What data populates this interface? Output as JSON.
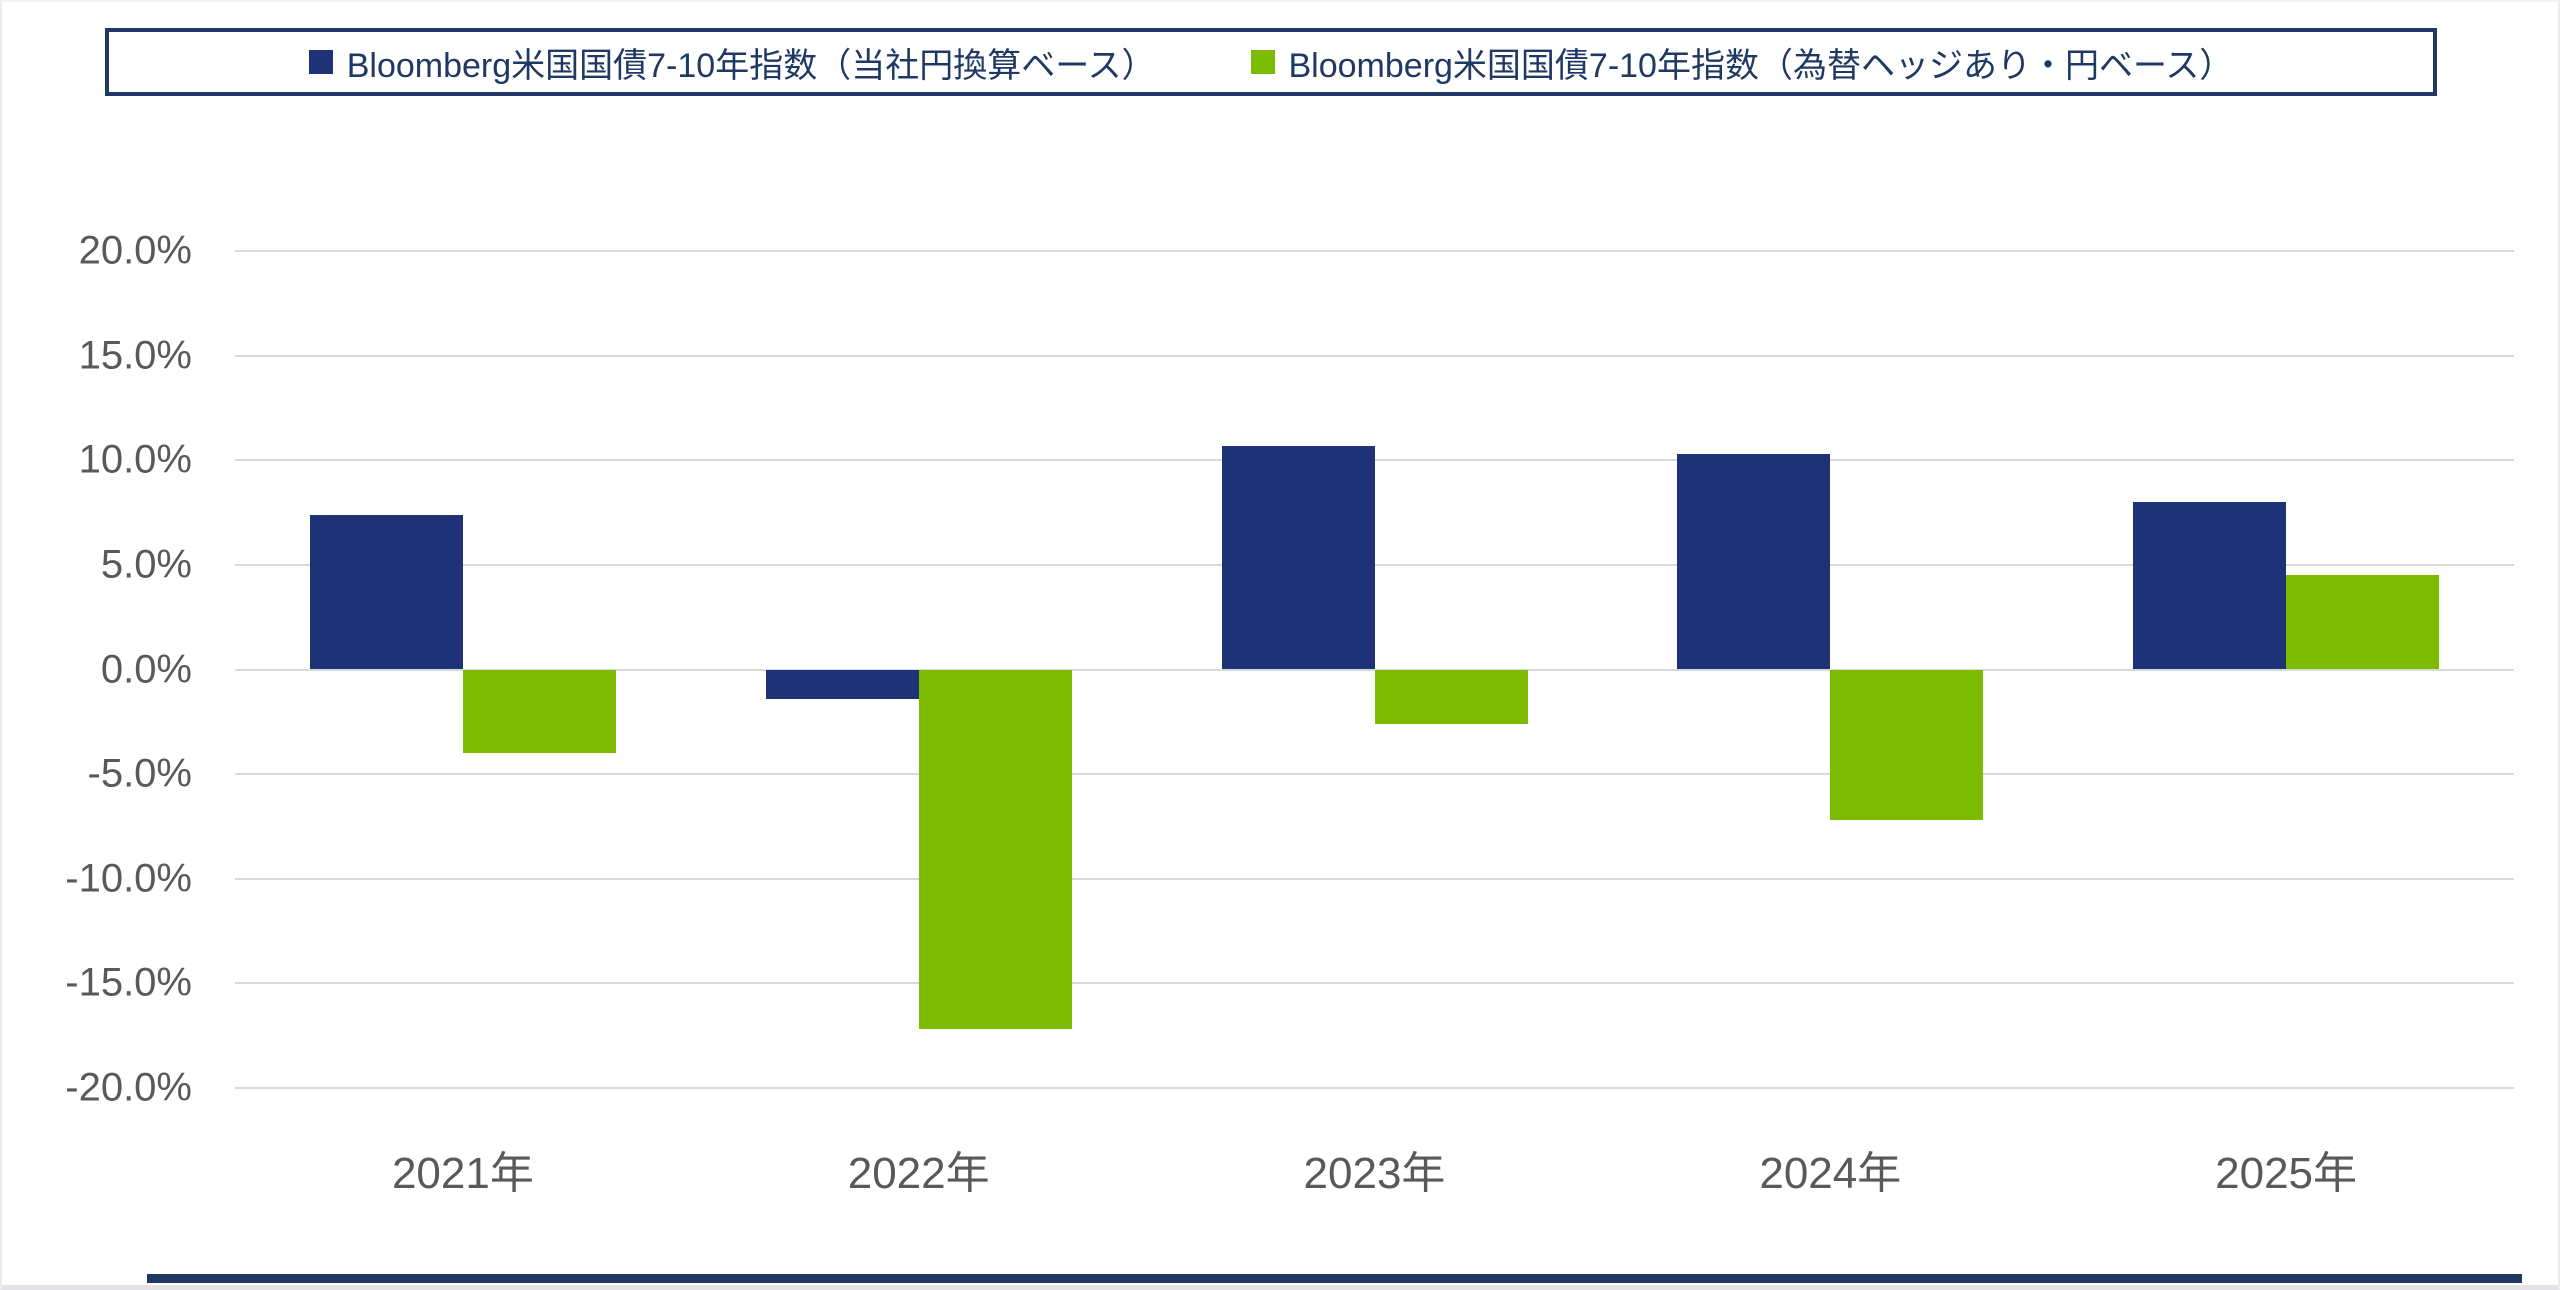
{
  "legend": {
    "items": [
      {
        "label": "Bloomberg米国国債7-10年指数（当社円換算ベース）",
        "color": "#1f3278"
      },
      {
        "label": "Bloomberg米国国債7-10年指数（為替ヘッジあり・円ベース）",
        "color": "#7cbb00"
      }
    ]
  },
  "chart_data": {
    "type": "bar",
    "categories": [
      "2021年",
      "2022年",
      "2023年",
      "2024年",
      "2025年"
    ],
    "series": [
      {
        "name": "Bloomberg米国国債7-10年指数（当社円換算ベース）",
        "color": "#1f3278",
        "values": [
          7.4,
          -1.4,
          10.7,
          10.3,
          8.0
        ]
      },
      {
        "name": "Bloomberg米国国債7-10年指数（為替ヘッジあり・円ベース）",
        "color": "#7cbb00",
        "values": [
          -4.0,
          -17.2,
          -2.6,
          -7.2,
          4.5
        ]
      }
    ],
    "title": "",
    "xlabel": "",
    "ylabel": "",
    "ylim": [
      -20,
      20
    ],
    "y_tick_step": 5,
    "y_tick_labels": [
      "20.0%",
      "15.0%",
      "10.0%",
      "5.0%",
      "0.0%",
      "-5.0%",
      "-10.0%",
      "-15.0%",
      "-20.0%"
    ],
    "grid": true,
    "legend_position": "top"
  },
  "colors": {
    "legend_border": "#1f3864",
    "legend_text": "#1f3864",
    "gridline": "#d9d9d9",
    "axis_text": "#595959",
    "series_navy": "#1f3278",
    "series_green": "#7cbb00",
    "bottom_rule": "#1f3864"
  }
}
